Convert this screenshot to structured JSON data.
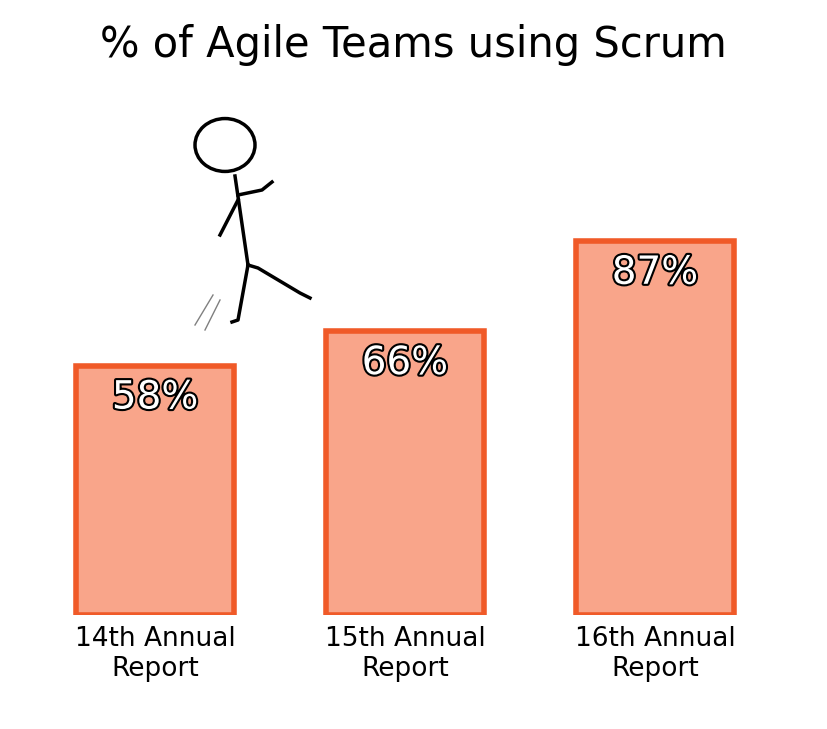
{
  "chart_data": {
    "type": "bar",
    "title": "% of Agile Teams using Scrum",
    "categories": [
      "14th Annual Report",
      "15th Annual Report",
      "16th Annual Report"
    ],
    "values": [
      58,
      66,
      87
    ],
    "value_labels": [
      "58%",
      "66%",
      "87%"
    ],
    "color": "#f9a58a",
    "ylim": [
      0,
      100
    ],
    "data_labels": true,
    "tick_labels": "x",
    "grid": false
  }
}
